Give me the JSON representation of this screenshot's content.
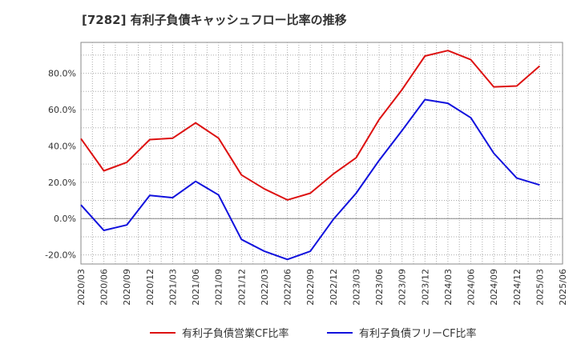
{
  "chart_data": {
    "type": "line",
    "title": "[7282]  有利子負債キャッシュフロー比率の推移",
    "xlabel": "",
    "ylabel": "",
    "categories": [
      "2020/03",
      "2020/06",
      "2020/09",
      "2020/12",
      "2021/03",
      "2021/06",
      "2021/09",
      "2021/12",
      "2022/03",
      "2022/06",
      "2022/09",
      "2022/12",
      "2023/03",
      "2023/06",
      "2023/09",
      "2023/12",
      "2024/03",
      "2024/06",
      "2024/09",
      "2024/12",
      "2025/03",
      "2025/06"
    ],
    "ylim": [
      -25,
      97
    ],
    "yticks": [
      -20,
      0,
      20,
      40,
      60,
      80
    ],
    "ytick_labels": [
      "-20.0%",
      "0.0%",
      "20.0%",
      "40.0%",
      "60.0%",
      "80.0%"
    ],
    "grid": true,
    "legend_position": "bottom",
    "series": [
      {
        "name": "有利子負債営業CF比率",
        "color": "#dd1111",
        "values": [
          44.0,
          26.3,
          31.0,
          43.5,
          44.3,
          52.7,
          44.3,
          24.0,
          16.3,
          10.3,
          14.0,
          24.5,
          33.5,
          54.5,
          71.0,
          89.5,
          92.5,
          87.5,
          72.5,
          73.0,
          84.0,
          null
        ]
      },
      {
        "name": "有利子負債フリーCF比率",
        "color": "#1111dd",
        "values": [
          7.5,
          -6.5,
          -3.5,
          12.8,
          11.5,
          20.5,
          13.0,
          -11.5,
          -18.0,
          -22.5,
          -18.0,
          -0.5,
          14.0,
          32.0,
          48.5,
          65.5,
          63.5,
          55.5,
          36.0,
          22.3,
          18.5,
          null
        ]
      }
    ]
  }
}
